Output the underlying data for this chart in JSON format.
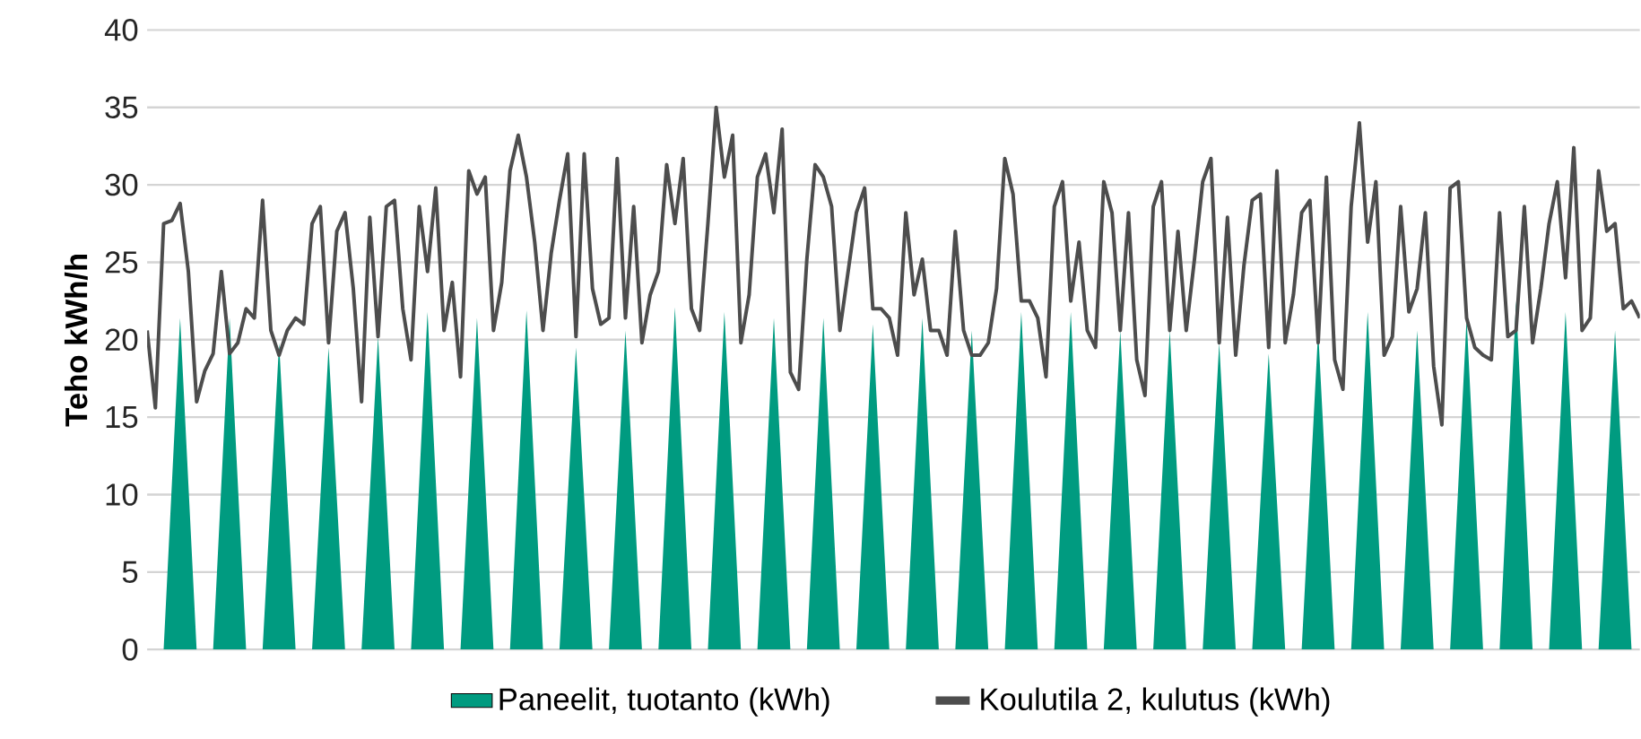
{
  "chart_data": {
    "type": "line",
    "ylabel": "Teho kWh/h",
    "ylim": [
      0,
      40
    ],
    "yticks": [
      0,
      5,
      10,
      15,
      20,
      25,
      30,
      35,
      40
    ],
    "grid": "y",
    "legend": "bottom",
    "tick_labels": "y",
    "marker": "none",
    "line_style": "solid",
    "categories": [
      null,
      null,
      null,
      null,
      null,
      null,
      null,
      null,
      null,
      null,
      null,
      null,
      null,
      null,
      null,
      null,
      null,
      null,
      null,
      null,
      null,
      null,
      null,
      null,
      null,
      null,
      null,
      null,
      null,
      null,
      null,
      null,
      null,
      null,
      null,
      null,
      null,
      null,
      null,
      null,
      null,
      null,
      null,
      null,
      null,
      null,
      null,
      null,
      null,
      null,
      null,
      null,
      null,
      null,
      null,
      null,
      null,
      null,
      null,
      null,
      null,
      null,
      null,
      null,
      null,
      null,
      null,
      null,
      null,
      null,
      null,
      null,
      null,
      null,
      null,
      null,
      null,
      null,
      null,
      null,
      null,
      null,
      null,
      null,
      null,
      null,
      null,
      null,
      null,
      null,
      null,
      null,
      null,
      null,
      null,
      null,
      null,
      null,
      null,
      null,
      null,
      null,
      null,
      null,
      null,
      null,
      null,
      null,
      null,
      null,
      null,
      null,
      null,
      null,
      null,
      null,
      null,
      null,
      null,
      null,
      null,
      null,
      null,
      null,
      null,
      null,
      null,
      null,
      null,
      null,
      null,
      null,
      null,
      null,
      null,
      null,
      null,
      null,
      null,
      null,
      null,
      null,
      null,
      null,
      null,
      null,
      null,
      null,
      null,
      null,
      null,
      null,
      null,
      null,
      null,
      null,
      null,
      null,
      null,
      null,
      null,
      null,
      null,
      null,
      null,
      null,
      null,
      null,
      null,
      null,
      null,
      null,
      null,
      null,
      null,
      null,
      null,
      null,
      null,
      null,
      null,
      null
    ],
    "series": [
      {
        "name": "Paneelit, tuotanto (kWh)",
        "type": "area",
        "color": "#009b80",
        "values": [
          0,
          0,
          0,
          10.7,
          21.4,
          10.7,
          0,
          0,
          0,
          10.7,
          21.4,
          10.7,
          0,
          0,
          0,
          9.9,
          19.8,
          9.9,
          0,
          0,
          0,
          9.8,
          19.5,
          9.8,
          0,
          0,
          0,
          10.1,
          20.2,
          10.1,
          0,
          0,
          0,
          10.9,
          21.8,
          10.9,
          0,
          0,
          0,
          10.7,
          21.4,
          10.7,
          0,
          0,
          0,
          11,
          21.9,
          11,
          0,
          0,
          0,
          9.8,
          19.5,
          9.8,
          0,
          0,
          0,
          10.3,
          20.6,
          10.3,
          0,
          0,
          0,
          11.1,
          22.1,
          11.1,
          0,
          0,
          0,
          10.9,
          21.8,
          10.9,
          0,
          0,
          0,
          10.7,
          21.4,
          10.7,
          0,
          0,
          0,
          10.7,
          21.4,
          10.7,
          0,
          0,
          0,
          10.5,
          21,
          10.5,
          0,
          0,
          0,
          10.7,
          21.4,
          10.7,
          0,
          0,
          0,
          10.3,
          20.6,
          10.3,
          0,
          0,
          0,
          10.9,
          21.8,
          10.9,
          0,
          0,
          0,
          10.9,
          21.8,
          10.9,
          0,
          0,
          0,
          10.3,
          20.6,
          10.3,
          0,
          0,
          0,
          10.3,
          20.6,
          10.3,
          0,
          0,
          0,
          9.9,
          19.8,
          9.9,
          0,
          0,
          0,
          9.6,
          19.1,
          9.6,
          0,
          0,
          0,
          10.3,
          20.6,
          10.3,
          0,
          0,
          0,
          10.9,
          21.8,
          10.9,
          0,
          0,
          0,
          10.3,
          20.6,
          10.3,
          0,
          0,
          0,
          10.7,
          21.4,
          10.7,
          0,
          0,
          0,
          11.3,
          22.5,
          11.3,
          0,
          0,
          0,
          10.9,
          21.8,
          10.9,
          0,
          0,
          0,
          10.3,
          20.6,
          10.3,
          0,
          0
        ]
      },
      {
        "name": "Koulutila 2, kulutus (kWh)",
        "color": "#4d4d4d",
        "values": [
          20.6,
          15.6,
          27.5,
          27.7,
          28.8,
          24.4,
          16,
          18,
          19.1,
          24.4,
          19.1,
          19.8,
          22,
          21.4,
          29,
          20.6,
          19,
          20.6,
          21.4,
          21,
          27.5,
          28.6,
          19.8,
          27,
          28.2,
          23.3,
          16,
          27.9,
          20.2,
          28.6,
          29,
          22,
          18.7,
          28.6,
          24.4,
          29.8,
          20.6,
          23.7,
          17.6,
          30.9,
          29.4,
          30.5,
          20.6,
          23.7,
          30.9,
          33.2,
          30.5,
          26.3,
          20.6,
          25.6,
          29,
          32,
          20.2,
          32,
          23.3,
          21,
          21.4,
          31.7,
          21.4,
          28.6,
          19.8,
          22.9,
          24.4,
          31.3,
          27.5,
          31.7,
          22,
          20.6,
          27.5,
          35,
          30.5,
          33.2,
          19.8,
          22.9,
          30.5,
          32,
          28.2,
          33.6,
          17.9,
          16.8,
          25.2,
          31.3,
          30.5,
          28.6,
          20.6,
          24.4,
          28.2,
          29.8,
          22,
          22,
          21.4,
          19,
          28.2,
          22.9,
          25.2,
          20.6,
          20.6,
          19,
          27,
          20.6,
          19,
          19,
          19.8,
          23.3,
          31.7,
          29.4,
          22.5,
          22.5,
          21.4,
          17.6,
          28.6,
          30.2,
          22.5,
          26.3,
          20.6,
          19.5,
          30.2,
          28.2,
          20.6,
          28.2,
          18.7,
          16.4,
          28.6,
          30.2,
          20.6,
          27,
          20.6,
          25.2,
          30.2,
          31.7,
          19.8,
          27.9,
          19,
          24.8,
          29,
          29.4,
          19.5,
          30.9,
          19.8,
          22.9,
          28.2,
          29,
          19.8,
          30.5,
          18.7,
          16.8,
          28.6,
          34,
          26.3,
          30.2,
          19,
          20.2,
          28.6,
          21.8,
          23.3,
          28.2,
          18.3,
          14.5,
          29.8,
          30.2,
          21.4,
          19.5,
          19,
          18.7,
          28.2,
          20.2,
          20.6,
          28.6,
          19.8,
          23.3,
          27.5,
          30.2,
          24,
          32.4,
          20.6,
          21.4,
          30.9,
          27,
          27.5,
          22,
          22.5,
          21.4
        ]
      }
    ]
  }
}
